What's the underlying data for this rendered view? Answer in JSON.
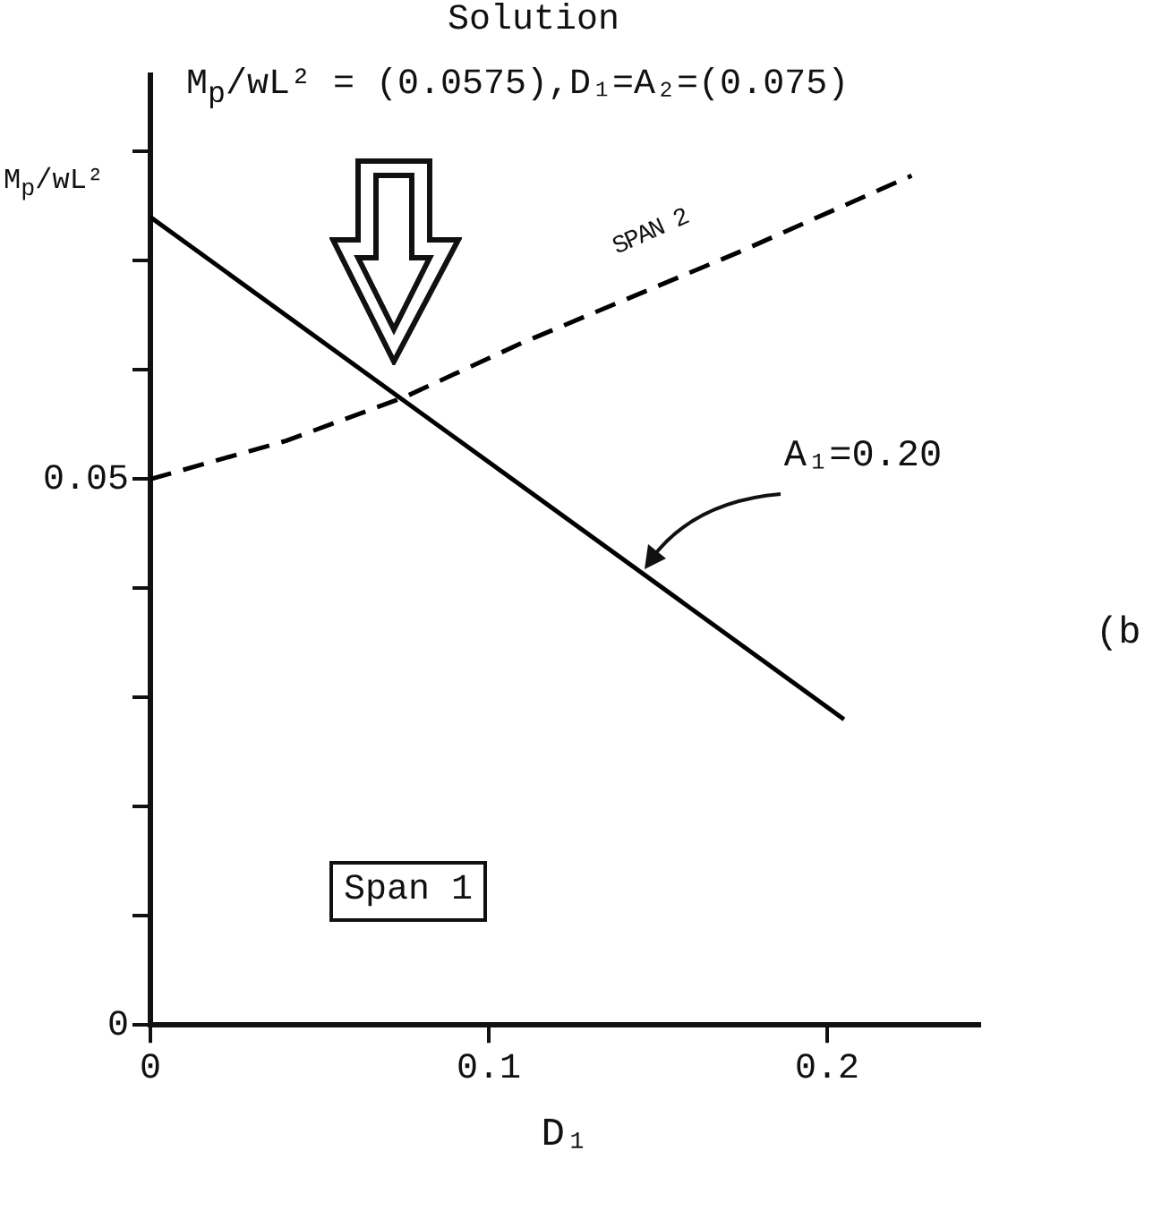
{
  "chart_data": {
    "type": "line",
    "title": "Solution",
    "xlabel": "D₁",
    "ylabel": "M$_{p}$/wL²",
    "xlim": [
      0,
      0.245
    ],
    "xticks": [
      0,
      0.1,
      0.2
    ],
    "ylim": [
      0,
      0.087
    ],
    "yticks": [
      0,
      {
        "value": 0.01,
        "label": null
      },
      {
        "value": 0.02,
        "label": null
      },
      {
        "value": 0.03,
        "label": null
      },
      {
        "value": 0.04,
        "label": null
      },
      0.05,
      {
        "value": 0.06,
        "label": null
      },
      {
        "value": 0.07,
        "label": null
      },
      {
        "value": 0.08,
        "label": null
      }
    ],
    "marker": "none",
    "series": [
      {
        "color": "#000000",
        "line_style": "solid",
        "x": [
          0,
          0.205
        ],
        "values": [
          0.074,
          0.028
        ]
      },
      {
        "color": "#000000",
        "line_style": "dashed",
        "x": [
          0,
          0.04,
          0.075,
          0.11,
          0.174,
          0.225
        ],
        "values": [
          0.05,
          0.0535,
          0.0575,
          0.0625,
          0.0708,
          0.0778
        ]
      }
    ],
    "annotations": [
      "M$_{p}$/wL² = (0.0575),D₁=A₂=(0.075)",
      "SPAN 2",
      {
        "text": "A₁=0.20",
        "x": 0.146,
        "y": 0.042
      },
      "Span  1",
      "(b"
    ]
  }
}
